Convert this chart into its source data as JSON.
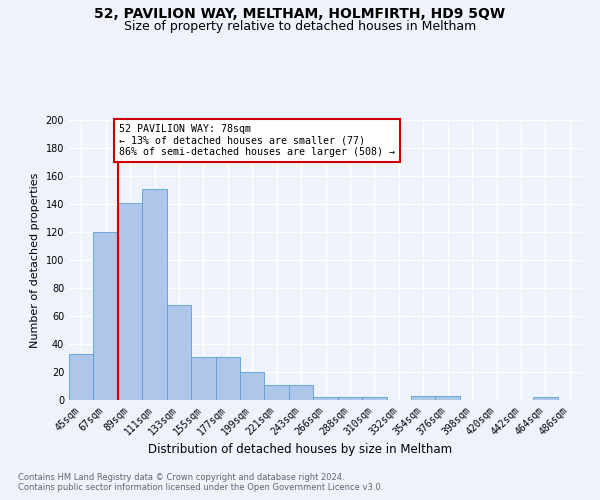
{
  "title": "52, PAVILION WAY, MELTHAM, HOLMFIRTH, HD9 5QW",
  "subtitle": "Size of property relative to detached houses in Meltham",
  "xlabel": "Distribution of detached houses by size in Meltham",
  "ylabel": "Number of detached properties",
  "categories": [
    "45sqm",
    "67sqm",
    "89sqm",
    "111sqm",
    "133sqm",
    "155sqm",
    "177sqm",
    "199sqm",
    "221sqm",
    "243sqm",
    "266sqm",
    "288sqm",
    "310sqm",
    "332sqm",
    "354sqm",
    "376sqm",
    "398sqm",
    "420sqm",
    "442sqm",
    "464sqm",
    "486sqm"
  ],
  "values": [
    33,
    120,
    141,
    151,
    68,
    31,
    31,
    20,
    11,
    11,
    2,
    2,
    2,
    0,
    3,
    3,
    0,
    0,
    0,
    2,
    0
  ],
  "bar_color": "#aec6e8",
  "bar_edge_color": "#5a9fd4",
  "red_line_index": 1.5,
  "annotation_text": "52 PAVILION WAY: 78sqm\n← 13% of detached houses are smaller (77)\n86% of semi-detached houses are larger (508) →",
  "annotation_box_color": "#ffffff",
  "annotation_box_edge_color": "#cc0000",
  "footer_text": "Contains HM Land Registry data © Crown copyright and database right 2024.\nContains public sector information licensed under the Open Government Licence v3.0.",
  "ylim": [
    0,
    200
  ],
  "background_color": "#eef2fb",
  "plot_background": "#eef2fb",
  "grid_color": "#ffffff",
  "title_fontsize": 10,
  "subtitle_fontsize": 9,
  "tick_fontsize": 7,
  "ylabel_fontsize": 8,
  "xlabel_fontsize": 8.5
}
